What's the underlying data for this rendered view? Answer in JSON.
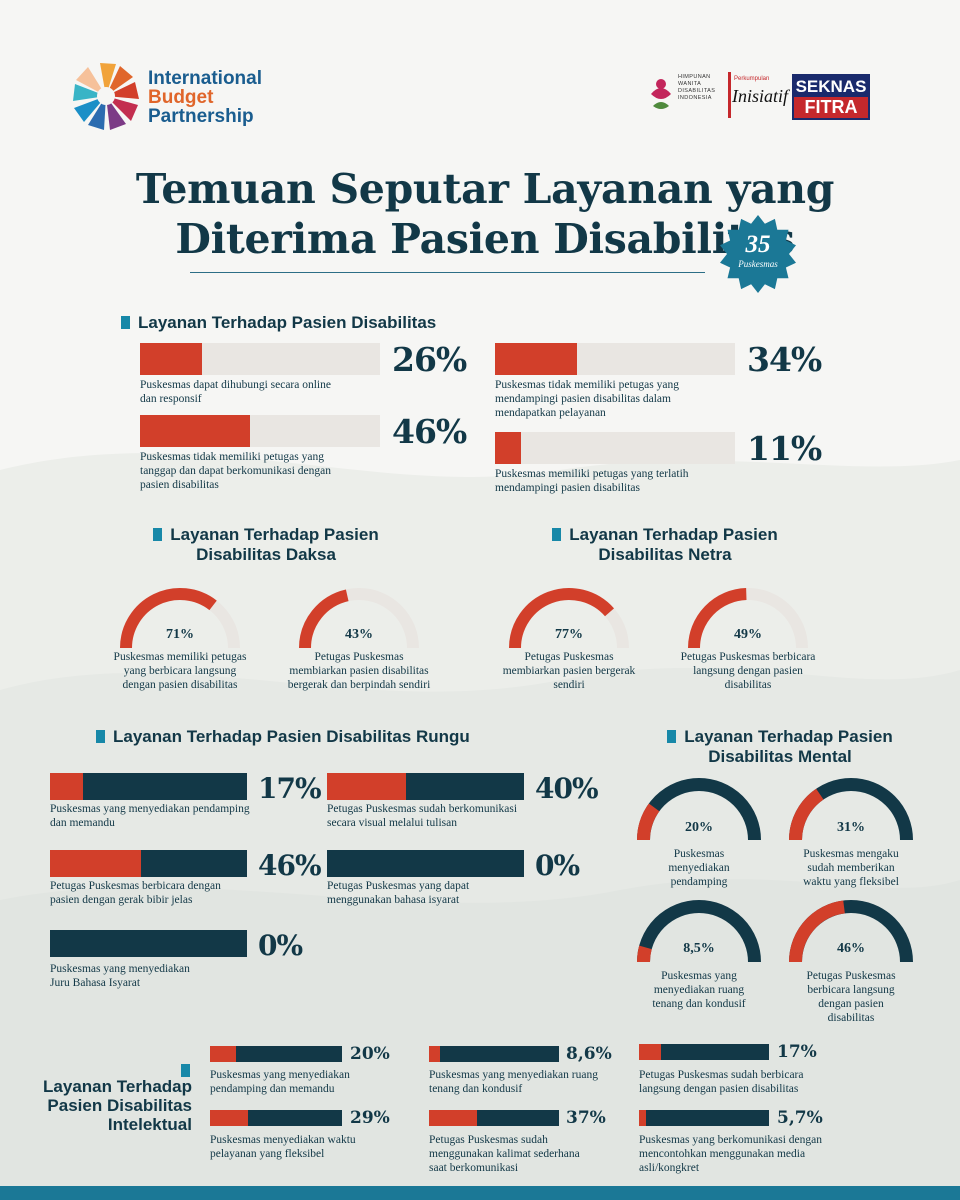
{
  "header": {
    "logo_lines": [
      "International",
      "Budget",
      "Partnership"
    ],
    "partners": {
      "hwdi": [
        "HIMPUNAN",
        "WANITA",
        "DISABILITAS",
        "INDONESIA"
      ],
      "inisiatif_tag": "Perkumpulan",
      "inisiatif": "Inisiatif",
      "seknas": [
        "SEKNAS",
        "FITRA"
      ]
    }
  },
  "title": {
    "line1": "Temuan Seputar Layanan yang",
    "line2": "Diterima Pasien Disabilitas"
  },
  "badge": {
    "number": "35",
    "label": "Puskesmas"
  },
  "colors": {
    "accent": "#d23f2a",
    "navy": "#123847",
    "track": "#e9e6e2",
    "square": "#1788a8"
  },
  "section1": {
    "heading": "Layanan Terhadap Pasien Disabilitas",
    "items": [
      {
        "value": 26,
        "pct": "26%",
        "caption": [
          "Puskesmas dapat dihubungi secara online",
          "dan responsif"
        ]
      },
      {
        "value": 46,
        "pct": "46%",
        "caption": [
          "Puskesmas tidak memiliki petugas yang",
          "tanggap dan dapat berkomunikasi dengan",
          "pasien disabilitas"
        ]
      },
      {
        "value": 34,
        "pct": "34%",
        "caption": [
          "Puskesmas tidak memiliki petugas yang",
          "mendampingi pasien disabilitas dalam",
          "mendapatkan pelayanan"
        ]
      },
      {
        "value": 11,
        "pct": "11%",
        "caption": [
          "Puskesmas memiliki petugas yang terlatih",
          "mendampingi pasien disabilitas"
        ]
      }
    ]
  },
  "daksa": {
    "heading": [
      "Layanan Terhadap Pasien",
      "Disabilitas Daksa"
    ],
    "items": [
      {
        "value": 71,
        "pct": "71%",
        "caption": [
          "Puskesmas memiliki petugas",
          "yang berbicara langsung",
          "dengan pasien disabilitas"
        ]
      },
      {
        "value": 43,
        "pct": "43%",
        "caption": [
          "Petugas Puskesmas",
          "membiarkan pasien disabilitas",
          "bergerak dan berpindah sendiri"
        ]
      }
    ]
  },
  "netra": {
    "heading": [
      "Layanan Terhadap Pasien",
      "Disabilitas Netra"
    ],
    "items": [
      {
        "value": 77,
        "pct": "77%",
        "caption": [
          "Petugas Puskesmas",
          "membiarkan pasien bergerak",
          "sendiri"
        ]
      },
      {
        "value": 49,
        "pct": "49%",
        "caption": [
          "Petugas Puskesmas berbicara",
          "langsung dengan pasien",
          "disabilitas"
        ]
      }
    ]
  },
  "rungu": {
    "heading": "Layanan Terhadap Pasien Disabilitas Rungu",
    "items": [
      {
        "value": 17,
        "pct": "17%",
        "caption": [
          "Puskesmas yang menyediakan pendamping",
          "dan memandu"
        ]
      },
      {
        "value": 40,
        "pct": "40%",
        "caption": [
          "Petugas Puskesmas sudah berkomunikasi",
          "secara visual melalui tulisan"
        ]
      },
      {
        "value": 46,
        "pct": "46%",
        "caption": [
          "Petugas Puskesmas berbicara dengan",
          "pasien dengan gerak bibir jelas"
        ]
      },
      {
        "value": 0,
        "pct": "0%",
        "caption": [
          "Petugas Puskesmas yang dapat",
          "menggunakan bahasa isyarat"
        ]
      },
      {
        "value": 0,
        "pct": "0%",
        "caption": [
          "Puskesmas yang menyediakan",
          "Juru Bahasa Isyarat"
        ]
      }
    ]
  },
  "mental": {
    "heading": [
      "Layanan Terhadap Pasien",
      "Disabilitas Mental"
    ],
    "items": [
      {
        "value": 20,
        "pct": "20%",
        "caption": [
          "Puskesmas",
          "menyediakan",
          "pendamping"
        ]
      },
      {
        "value": 31,
        "pct": "31%",
        "caption": [
          "Puskesmas mengaku",
          "sudah memberikan",
          "waktu yang fleksibel"
        ]
      },
      {
        "value": 8.5,
        "pct": "8,5%",
        "caption": [
          "Puskesmas yang",
          "menyediakan ruang",
          "tenang dan kondusif"
        ]
      },
      {
        "value": 46,
        "pct": "46%",
        "caption": [
          "Petugas Puskesmas",
          "berbicara langsung",
          "dengan pasien",
          "disabilitas"
        ]
      }
    ]
  },
  "intelektual": {
    "heading": [
      "Layanan Terhadap",
      "Pasien Disabilitas",
      "Intelektual"
    ],
    "items": [
      {
        "value": 20,
        "pct": "20%",
        "caption": [
          "Puskesmas yang menyediakan",
          "pendamping dan memandu"
        ]
      },
      {
        "value": 29,
        "pct": "29%",
        "caption": [
          "Puskesmas menyediakan waktu",
          "pelayanan yang fleksibel"
        ]
      },
      {
        "value": 8.6,
        "pct": "8,6%",
        "caption": [
          "Puskesmas yang menyediakan ruang",
          "tenang dan kondusif"
        ]
      },
      {
        "value": 37,
        "pct": "37%",
        "caption": [
          "Petugas Puskesmas sudah",
          "menggunakan kalimat sederhana",
          "saat berkomunikasi"
        ]
      },
      {
        "value": 17,
        "pct": "17%",
        "caption": [
          "Petugas Puskesmas sudah berbicara",
          "langsung dengan pasien disabilitas"
        ]
      },
      {
        "value": 5.7,
        "pct": "5,7%",
        "caption": [
          "Puskesmas yang berkomunikasi dengan",
          "mencontohkan menggunakan media",
          "asli/kongkret"
        ]
      }
    ]
  }
}
